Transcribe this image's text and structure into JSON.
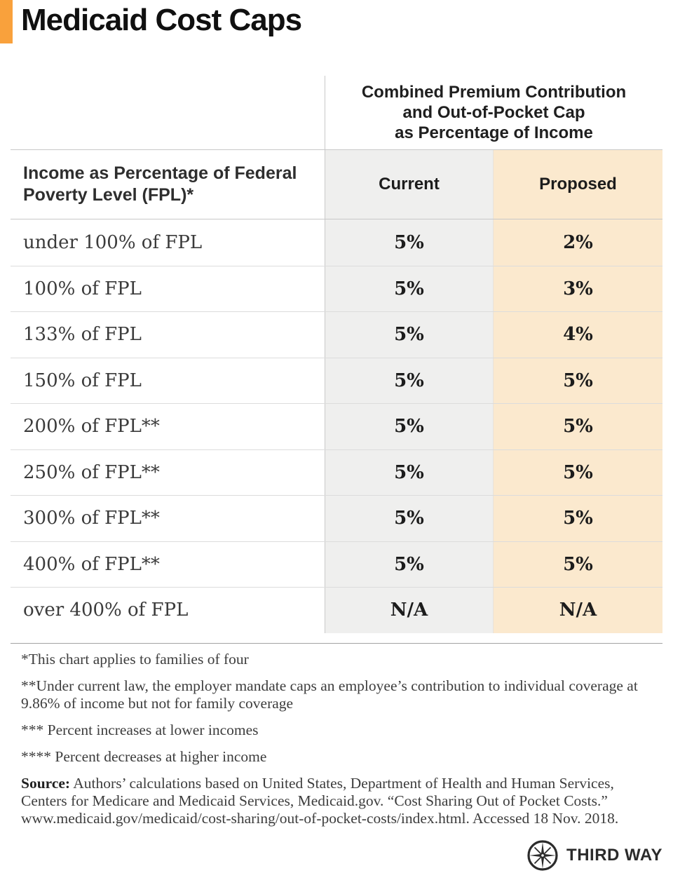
{
  "title": "Medicaid Cost Caps",
  "accent_color": "#F9A13C",
  "table": {
    "group_header": "Combined Premium Contribution\nand Out-of-Pocket Cap\nas Percentage of Income",
    "row_header": "Income as Percentage of Federal Poverty Level (FPL)*",
    "columns": [
      "Current",
      "Proposed"
    ],
    "current_column_bg": "#EFEFEE",
    "proposed_column_bg": "#FBE9CE"
  },
  "chart_data": {
    "type": "table",
    "title": "Medicaid Cost Caps",
    "column_group_header": "Combined Premium Contribution and Out-of-Pocket Cap as Percentage of Income",
    "row_header": "Income as Percentage of Federal Poverty Level (FPL)*",
    "columns": [
      "Current",
      "Proposed"
    ],
    "rows": [
      {
        "income_level": "under 100% of FPL",
        "current": "5%",
        "proposed": "2%"
      },
      {
        "income_level": "100% of FPL",
        "current": "5%",
        "proposed": "3%"
      },
      {
        "income_level": "133% of FPL",
        "current": "5%",
        "proposed": "4%"
      },
      {
        "income_level": "150% of FPL",
        "current": "5%",
        "proposed": "5%"
      },
      {
        "income_level": "200% of FPL**",
        "current": "5%",
        "proposed": "5%"
      },
      {
        "income_level": "250% of FPL**",
        "current": "5%",
        "proposed": "5%"
      },
      {
        "income_level": "300% of FPL**",
        "current": "5%",
        "proposed": "5%"
      },
      {
        "income_level": "400% of FPL**",
        "current": "5%",
        "proposed": "5%"
      },
      {
        "income_level": "over 400% of FPL",
        "current": "N/A",
        "proposed": "N/A"
      }
    ]
  },
  "footnotes": [
    "*This chart applies to families of four",
    "**Under current law, the employer mandate caps an employee’s contribution to individual coverage at 9.86% of income but not for family coverage",
    "*** Percent increases at lower incomes",
    "**** Percent decreases at higher income"
  ],
  "source": {
    "label": "Source:",
    "text": "Authors’ calculations based on United States, Department of Health and Human Services, Centers for Medicare and Medicaid Services, Medicaid.gov. “Cost Sharing Out of Pocket Costs.” www.medicaid.gov/medicaid/cost-sharing/out-of-pocket-costs/index.html. Accessed 18 Nov. 2018."
  },
  "logo": {
    "wordmark": "THIRD WAY",
    "icon": "compass-star-icon"
  }
}
